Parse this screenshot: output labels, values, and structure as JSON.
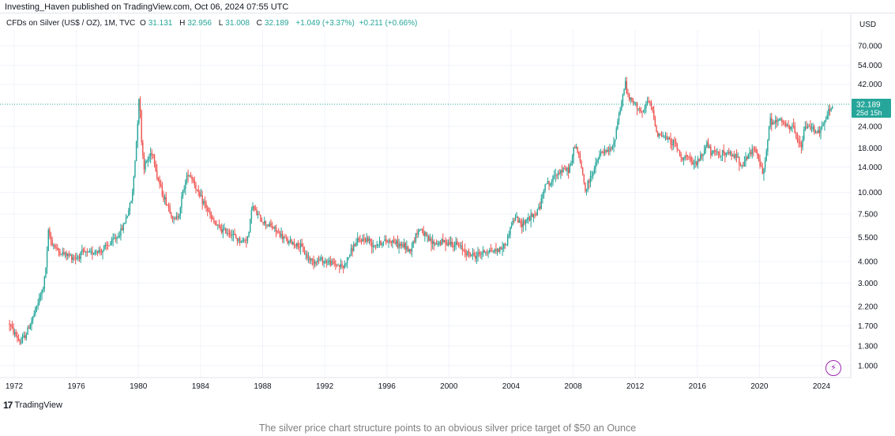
{
  "header": {
    "published_text": "Investing_Haven published on TradingView.com, Oct 06, 2024 07:55 UTC"
  },
  "legend": {
    "symbol": "CFDs on Silver (US$ / OZ), 1M, TVC",
    "open_label": "O",
    "open": "31.131",
    "high_label": "H",
    "high": "32.956",
    "low_label": "L",
    "low": "31.008",
    "close_label": "C",
    "close": "32.189",
    "change": "+1.049 (+3.37%)",
    "extra": "+0.211 (+0.66%)"
  },
  "axis": {
    "currency": "USD"
  },
  "price_tag": {
    "value": "32.189",
    "countdown": "25d 15h"
  },
  "footer": {
    "brand": "TradingView"
  },
  "caption": "The silver price chart structure points to an obvious silver price target of $50 an Ounce",
  "colors": {
    "up": "#26a69a",
    "down": "#ef5350",
    "grid": "#f0f3fa",
    "tag": "#26a69a",
    "hline": "#26a69a"
  },
  "icons": {
    "logo": "tradingview-logo-icon",
    "alert": "lightning-icon"
  },
  "chart_data": {
    "type": "candlestick",
    "title": "",
    "y_scale": "log",
    "y_ticks": [
      70,
      54,
      42,
      32.189,
      24,
      18,
      14,
      10,
      7.5,
      5.5,
      4,
      3,
      2.2,
      1.7,
      1.3,
      1
    ],
    "y_tick_labels": [
      "70.000",
      "54.000",
      "42.000",
      "32.189",
      "24.000",
      "18.000",
      "14.000",
      "10.000",
      "7.500",
      "5.500",
      "4.000",
      "3.000",
      "2.200",
      "1.700",
      "1.300",
      "1.000"
    ],
    "x_ticks": [
      1972,
      1976,
      1980,
      1984,
      1988,
      1992,
      1996,
      2000,
      2004,
      2008,
      2012,
      2016,
      2020,
      2024
    ],
    "x_tick_labels": [
      "1972",
      "1976",
      "1980",
      "1984",
      "1988",
      "1992",
      "1996",
      "2000",
      "2004",
      "2008",
      "2012",
      "2016",
      "2020",
      "2024"
    ],
    "xlim": [
      1971.7,
      2025.9
    ],
    "ylim": [
      0.85,
      88
    ],
    "last_price": 32.189,
    "close_path": [
      [
        1971.7,
        1.75
      ],
      [
        1971.9,
        1.6
      ],
      [
        1972.2,
        1.45
      ],
      [
        1972.4,
        1.35
      ],
      [
        1972.8,
        1.55
      ],
      [
        1973.2,
        1.9
      ],
      [
        1973.6,
        2.4
      ],
      [
        1973.9,
        2.9
      ],
      [
        1974.1,
        4.2
      ],
      [
        1974.2,
        5.9
      ],
      [
        1974.4,
        5.2
      ],
      [
        1974.8,
        4.6
      ],
      [
        1975.2,
        4.4
      ],
      [
        1975.6,
        4.3
      ],
      [
        1976.0,
        4.2
      ],
      [
        1976.4,
        4.5
      ],
      [
        1976.8,
        4.4
      ],
      [
        1977.2,
        4.6
      ],
      [
        1977.6,
        4.6
      ],
      [
        1978.0,
        4.9
      ],
      [
        1978.5,
        5.4
      ],
      [
        1978.9,
        6.0
      ],
      [
        1979.3,
        7.5
      ],
      [
        1979.6,
        9.5
      ],
      [
        1979.8,
        16.0
      ],
      [
        1979.95,
        26.0
      ],
      [
        1980.05,
        38.0
      ],
      [
        1980.2,
        20.0
      ],
      [
        1980.35,
        14.0
      ],
      [
        1980.6,
        15.5
      ],
      [
        1980.9,
        17.5
      ],
      [
        1981.2,
        12.5
      ],
      [
        1981.6,
        9.5
      ],
      [
        1982.0,
        8.0
      ],
      [
        1982.3,
        6.8
      ],
      [
        1982.6,
        7.5
      ],
      [
        1982.9,
        10.5
      ],
      [
        1983.2,
        13.0
      ],
      [
        1983.5,
        12.0
      ],
      [
        1983.9,
        9.5
      ],
      [
        1984.3,
        8.5
      ],
      [
        1984.7,
        7.0
      ],
      [
        1985.1,
        6.3
      ],
      [
        1985.5,
        6.0
      ],
      [
        1985.9,
        5.9
      ],
      [
        1986.3,
        5.4
      ],
      [
        1986.7,
        5.2
      ],
      [
        1987.1,
        5.6
      ],
      [
        1987.3,
        8.5
      ],
      [
        1987.6,
        7.5
      ],
      [
        1988.0,
        6.8
      ],
      [
        1988.4,
        6.5
      ],
      [
        1988.8,
        6.1
      ],
      [
        1989.2,
        5.6
      ],
      [
        1989.6,
        5.2
      ],
      [
        1990.0,
        5.1
      ],
      [
        1990.5,
        4.8
      ],
      [
        1990.9,
        4.2
      ],
      [
        1991.3,
        4.0
      ],
      [
        1991.7,
        4.1
      ],
      [
        1992.1,
        4.0
      ],
      [
        1992.5,
        3.9
      ],
      [
        1992.9,
        3.8
      ],
      [
        1993.2,
        3.7
      ],
      [
        1993.5,
        4.2
      ],
      [
        1993.9,
        5.0
      ],
      [
        1994.3,
        5.3
      ],
      [
        1994.7,
        5.4
      ],
      [
        1995.1,
        5.0
      ],
      [
        1995.5,
        5.1
      ],
      [
        1995.9,
        5.2
      ],
      [
        1996.3,
        5.3
      ],
      [
        1996.7,
        5.0
      ],
      [
        1997.1,
        4.9
      ],
      [
        1997.5,
        4.6
      ],
      [
        1997.9,
        5.8
      ],
      [
        1998.2,
        6.2
      ],
      [
        1998.5,
        5.5
      ],
      [
        1998.9,
        5.1
      ],
      [
        1999.3,
        5.1
      ],
      [
        1999.7,
        5.2
      ],
      [
        2000.1,
        5.1
      ],
      [
        2000.5,
        5.0
      ],
      [
        2000.9,
        4.7
      ],
      [
        2001.3,
        4.4
      ],
      [
        2001.7,
        4.3
      ],
      [
        2002.1,
        4.5
      ],
      [
        2002.5,
        4.6
      ],
      [
        2002.9,
        4.6
      ],
      [
        2003.3,
        4.7
      ],
      [
        2003.7,
        5.1
      ],
      [
        2004.0,
        6.5
      ],
      [
        2004.3,
        7.2
      ],
      [
        2004.6,
        6.5
      ],
      [
        2005.0,
        7.0
      ],
      [
        2005.5,
        7.3
      ],
      [
        2005.9,
        8.5
      ],
      [
        2006.2,
        11.5
      ],
      [
        2006.5,
        11.0
      ],
      [
        2006.9,
        13.0
      ],
      [
        2007.3,
        13.3
      ],
      [
        2007.7,
        13.5
      ],
      [
        2007.9,
        15.0
      ],
      [
        2008.1,
        19.0
      ],
      [
        2008.3,
        17.0
      ],
      [
        2008.6,
        13.0
      ],
      [
        2008.8,
        10.0
      ],
      [
        2009.0,
        11.5
      ],
      [
        2009.4,
        14.0
      ],
      [
        2009.8,
        17.0
      ],
      [
        2010.2,
        17.0
      ],
      [
        2010.6,
        18.5
      ],
      [
        2010.9,
        27.0
      ],
      [
        2011.2,
        36.0
      ],
      [
        2011.35,
        44.0
      ],
      [
        2011.5,
        36.0
      ],
      [
        2011.8,
        33.0
      ],
      [
        2012.1,
        32.0
      ],
      [
        2012.5,
        28.0
      ],
      [
        2012.8,
        34.0
      ],
      [
        2013.1,
        30.0
      ],
      [
        2013.4,
        22.0
      ],
      [
        2013.8,
        21.0
      ],
      [
        2014.2,
        20.0
      ],
      [
        2014.6,
        19.0
      ],
      [
        2014.9,
        16.0
      ],
      [
        2015.3,
        16.2
      ],
      [
        2015.7,
        14.5
      ],
      [
        2016.0,
        14.8
      ],
      [
        2016.4,
        17.0
      ],
      [
        2016.6,
        19.5
      ],
      [
        2016.9,
        16.5
      ],
      [
        2017.3,
        17.0
      ],
      [
        2017.7,
        16.8
      ],
      [
        2018.1,
        16.5
      ],
      [
        2018.5,
        16.2
      ],
      [
        2018.8,
        14.5
      ],
      [
        2019.1,
        15.2
      ],
      [
        2019.5,
        17.5
      ],
      [
        2019.8,
        17.0
      ],
      [
        2020.2,
        13.0
      ],
      [
        2020.5,
        18.0
      ],
      [
        2020.65,
        26.5
      ],
      [
        2020.9,
        24.5
      ],
      [
        2021.1,
        26.0
      ],
      [
        2021.5,
        25.5
      ],
      [
        2021.9,
        23.0
      ],
      [
        2022.2,
        24.0
      ],
      [
        2022.5,
        19.0
      ],
      [
        2022.7,
        18.5
      ],
      [
        2022.9,
        23.5
      ],
      [
        2023.3,
        24.0
      ],
      [
        2023.7,
        22.5
      ],
      [
        2024.0,
        23.0
      ],
      [
        2024.3,
        27.0
      ],
      [
        2024.5,
        30.0
      ],
      [
        2024.75,
        31.2
      ]
    ]
  }
}
